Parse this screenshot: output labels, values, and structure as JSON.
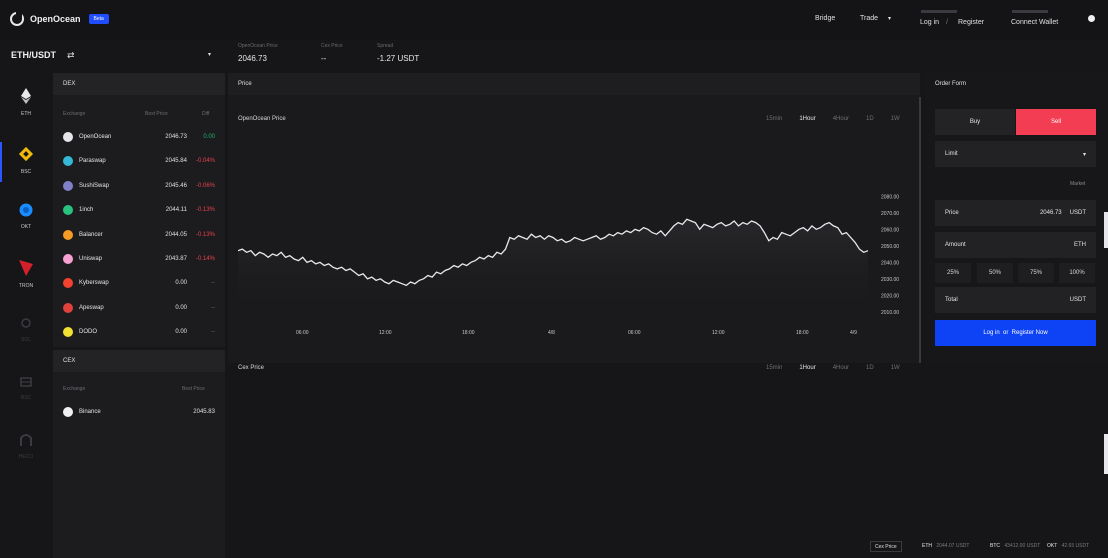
{
  "header": {
    "logo_text": "OpenOcean",
    "badge": "Beta",
    "nav": {
      "bridge": "Bridge",
      "trade": "Trade",
      "login": "Log in",
      "register": "Register",
      "connect_wallet": "Connect Wallet"
    },
    "pair": "ETH/USDT",
    "stats": [
      {
        "label": "OpenOcean Price",
        "value": "2046.73"
      },
      {
        "label": "Cex Price",
        "value": "--"
      },
      {
        "label": "Spread",
        "value": "-1.27 USDT"
      }
    ]
  },
  "sidebar": {
    "items": [
      {
        "label": "ETH",
        "icon": "eth-icon",
        "color": "#e8e8ec"
      },
      {
        "label": "BSC",
        "icon": "bnb-icon",
        "color": "#f0b90b"
      },
      {
        "label": "OKT",
        "icon": "okex-icon",
        "color": "#1a8cff"
      },
      {
        "label": "TRON",
        "icon": "tron-icon",
        "color": "#d3202a"
      },
      {
        "label": "SOL",
        "icon": "solana-icon",
        "color": "#3a3a40"
      },
      {
        "label": "BSC",
        "icon": "chain-icon",
        "color": "#3a3a40"
      },
      {
        "label": "HECO",
        "icon": "heco-icon",
        "color": "#3a3a40"
      }
    ]
  },
  "dex": {
    "title": "DEX",
    "columns": [
      "Exchange",
      "Best Price",
      "Diff"
    ],
    "rows": [
      {
        "name": "OpenOcean",
        "price": "2046.73",
        "chg": "0.00",
        "color": "#e6e6ea",
        "chg_color": "#1fb26b"
      },
      {
        "name": "Paraswap",
        "price": "2045.84",
        "chg": "-0.04%",
        "color": "#35b8d6",
        "chg_color": "#e8414f"
      },
      {
        "name": "SushiSwap",
        "price": "2045.46",
        "chg": "-0.06%",
        "color": "#8080c8",
        "chg_color": "#e8414f"
      },
      {
        "name": "1inch",
        "price": "2044.11",
        "chg": "-0.13%",
        "color": "#29c27e",
        "chg_color": "#e8414f"
      },
      {
        "name": "Balancer",
        "price": "2044.05",
        "chg": "-0.13%",
        "color": "#f59b23",
        "chg_color": "#e8414f"
      },
      {
        "name": "Uniswap",
        "price": "2043.87",
        "chg": "-0.14%",
        "color": "#f7a1d3",
        "chg_color": "#e8414f"
      },
      {
        "name": "Kyberswap",
        "price": "0.00",
        "chg": "--",
        "color": "#f4422e",
        "chg_color": "#6c6c72"
      },
      {
        "name": "Apeswap",
        "price": "0.00",
        "chg": "--",
        "color": "#e0413b",
        "chg_color": "#6c6c72"
      },
      {
        "name": "DODO",
        "price": "0.00",
        "chg": "--",
        "color": "#f2e033",
        "chg_color": "#6c6c72"
      }
    ]
  },
  "cex": {
    "title": "CEX",
    "columns": [
      "Exchange",
      "Best Price"
    ],
    "rows": [
      {
        "name": "Binance",
        "price": "2045.83",
        "color": "#f0f0f2"
      }
    ]
  },
  "chart": {
    "title": "Price",
    "subtitle": "OpenOcean Price",
    "timeframes": [
      "15min",
      "1Hour",
      "4Hour",
      "1D",
      "1W"
    ],
    "active_timeframe": "1Hour",
    "cex_title": "Cex Price",
    "cex_timeframes": [
      "15min",
      "1Hour",
      "4Hour",
      "1D",
      "1W"
    ]
  },
  "chart_data": {
    "type": "line",
    "title": "OpenOcean Price",
    "x_ticks": [
      "06:00",
      "12:00",
      "18:00",
      "4/8",
      "06:00",
      "12:00",
      "18:00",
      "4/9"
    ],
    "y_ticks": [
      "2080.00",
      "2070.00",
      "2060.00",
      "2050.00",
      "2040.00",
      "2030.00",
      "2020.00",
      "2010.00"
    ],
    "ylim": [
      2005,
      2085
    ],
    "grid": false,
    "values": [
      2047,
      2048,
      2046,
      2047,
      2044,
      2046,
      2045,
      2043,
      2045,
      2044,
      2046,
      2043,
      2044,
      2042,
      2041,
      2043,
      2040,
      2041,
      2039,
      2040,
      2038,
      2039,
      2037,
      2036,
      2037,
      2035,
      2036,
      2034,
      2032,
      2033,
      2030,
      2031,
      2029,
      2030,
      2028,
      2027,
      2029,
      2028,
      2027,
      2026,
      2028,
      2027,
      2029,
      2030,
      2032,
      2031,
      2034,
      2033,
      2035,
      2036,
      2038,
      2037,
      2039,
      2038,
      2040,
      2041,
      2043,
      2042,
      2044,
      2043,
      2046,
      2045,
      2048,
      2055,
      2054,
      2056,
      2055,
      2054,
      2057,
      2055,
      2056,
      2054,
      2056,
      2055,
      2053,
      2054,
      2052,
      2053,
      2055,
      2054,
      2053,
      2054,
      2055,
      2056,
      2054,
      2055,
      2057,
      2056,
      2058,
      2057,
      2059,
      2058,
      2060,
      2059,
      2061,
      2060,
      2058,
      2057,
      2059,
      2056,
      2059,
      2062,
      2064,
      2063,
      2066,
      2065,
      2064,
      2060,
      2063,
      2062,
      2061,
      2063,
      2064,
      2062,
      2063,
      2065,
      2062,
      2064,
      2063,
      2065,
      2064,
      2062,
      2058,
      2053,
      2055,
      2054,
      2058,
      2057,
      2056,
      2058,
      2060,
      2061,
      2059,
      2062,
      2060,
      2061,
      2063,
      2064,
      2062,
      2061,
      2057,
      2058,
      2055,
      2052,
      2048,
      2046,
      2047
    ]
  },
  "order_form": {
    "title": "Order Form",
    "buy": "Buy",
    "sell": "Sell",
    "order_type": "Limit",
    "market": "Market",
    "price_label": "Price",
    "price_value": "2046.73",
    "price_unit": "USDT",
    "amount_label": "Amount",
    "amount_unit": "ETH",
    "percents": [
      "25%",
      "50%",
      "75%",
      "100%"
    ],
    "total_label": "Total",
    "total_unit": "USDT",
    "submit": "Log in  or  Register Now",
    "sell_color": "#f23d52",
    "submit_color": "#0d42f5"
  },
  "footer": {
    "label": "Cex Price",
    "items": [
      {
        "sym": "ETH",
        "val": "2044.07 USDT"
      },
      {
        "sym": "BTC",
        "val": "43412.00 USDT"
      },
      {
        "sym": "OKT",
        "val": "42.65 USDT"
      }
    ]
  }
}
